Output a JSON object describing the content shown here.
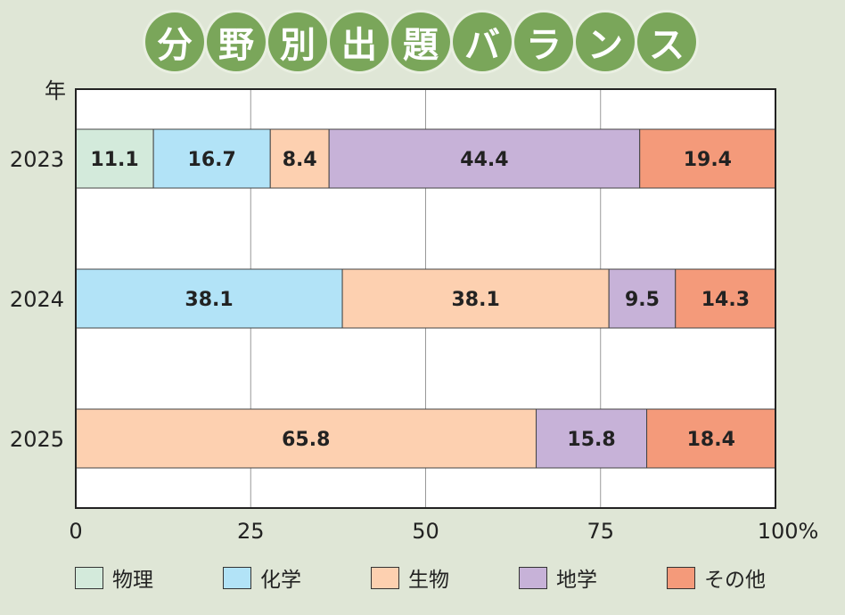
{
  "title": "分野別出題バランス",
  "chart_data": {
    "type": "bar",
    "orientation": "horizontal",
    "stacked": true,
    "y_axis_label": "年",
    "categories": [
      "2023",
      "2024",
      "2025"
    ],
    "series": [
      {
        "name": "物理",
        "color": "#d3eadb",
        "values": [
          11.1,
          0,
          0
        ]
      },
      {
        "name": "化学",
        "color": "#b2e3f7",
        "values": [
          16.7,
          38.1,
          0
        ]
      },
      {
        "name": "生物",
        "color": "#fdd0b0",
        "values": [
          8.4,
          38.1,
          65.8
        ]
      },
      {
        "name": "地学",
        "color": "#c7b2d8",
        "values": [
          44.4,
          9.5,
          15.8
        ]
      },
      {
        "name": "その他",
        "color": "#f49a7a",
        "values": [
          19.4,
          14.3,
          18.4
        ]
      }
    ],
    "x_ticks": [
      "0",
      "25",
      "50",
      "75",
      "100%"
    ],
    "xlim": [
      0,
      100
    ],
    "grid": true,
    "legend_position": "bottom"
  }
}
